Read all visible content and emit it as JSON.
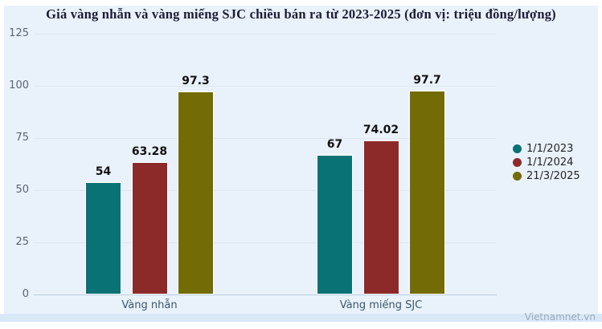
{
  "title": "Giá vàng nhẫn và vàng miếng SJC chiều bán ra từ 2023-2025 (đơn vị: triệu đồng/lượng)",
  "watermark": "Vietnamnet.vn",
  "palette": {
    "background": "#e9f2fb",
    "footer_band": "#d9e8f7",
    "title_color": "#1c1c35",
    "grid_color": "#dfe7f0",
    "axis_line_color": "#b9cfdf",
    "tick_color": "#5b6570",
    "category_color": "#3c566e",
    "value_label_color": "#111111",
    "legend_text_color": "#222222",
    "watermark_color": "#9aa9ba"
  },
  "chart_data": {
    "type": "bar",
    "title": "Giá vàng nhẫn và vàng miếng SJC chiều bán ra từ 2023-2025 (đơn vị: triệu đồng/lượng)",
    "categories": [
      "Vàng nhẫn",
      "Vàng miếng SJC"
    ],
    "series": [
      {
        "name": "1/1/2023",
        "color": "#087275",
        "values": [
          54,
          67
        ]
      },
      {
        "name": "1/1/2024",
        "color": "#8c2a2a",
        "values": [
          63.28,
          74.02
        ]
      },
      {
        "name": "21/3/2025",
        "color": "#736b05",
        "values": [
          97.3,
          97.7
        ]
      }
    ],
    "value_labels": [
      [
        "54",
        "67"
      ],
      [
        "63.28",
        "74.02"
      ],
      [
        "97.3",
        "97.7"
      ]
    ],
    "ylabel": "",
    "xlabel": "",
    "ylim": [
      0,
      125
    ],
    "yticks": [
      0,
      25,
      50,
      75,
      100,
      125
    ],
    "grid": true,
    "legend_position": "middle-right",
    "unit": "triệu đồng/lượng"
  }
}
